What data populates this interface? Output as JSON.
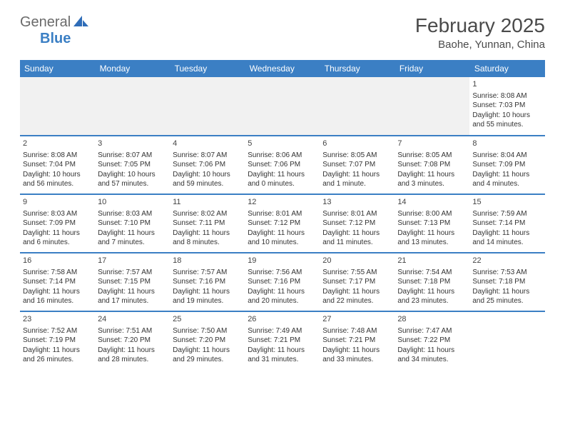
{
  "logo": {
    "text1": "General",
    "text2": "Blue"
  },
  "title": "February 2025",
  "location": "Baohe, Yunnan, China",
  "colors": {
    "header_bg": "#3b7fc4",
    "header_text": "#ffffff",
    "border": "#3b7fc4",
    "body_text": "#333333",
    "muted_bg": "#f1f1f1"
  },
  "day_headers": [
    "Sunday",
    "Monday",
    "Tuesday",
    "Wednesday",
    "Thursday",
    "Friday",
    "Saturday"
  ],
  "weeks": [
    [
      null,
      null,
      null,
      null,
      null,
      null,
      {
        "n": "1",
        "sr": "Sunrise: 8:08 AM",
        "ss": "Sunset: 7:03 PM",
        "dl": "Daylight: 10 hours and 55 minutes."
      }
    ],
    [
      {
        "n": "2",
        "sr": "Sunrise: 8:08 AM",
        "ss": "Sunset: 7:04 PM",
        "dl": "Daylight: 10 hours and 56 minutes."
      },
      {
        "n": "3",
        "sr": "Sunrise: 8:07 AM",
        "ss": "Sunset: 7:05 PM",
        "dl": "Daylight: 10 hours and 57 minutes."
      },
      {
        "n": "4",
        "sr": "Sunrise: 8:07 AM",
        "ss": "Sunset: 7:06 PM",
        "dl": "Daylight: 10 hours and 59 minutes."
      },
      {
        "n": "5",
        "sr": "Sunrise: 8:06 AM",
        "ss": "Sunset: 7:06 PM",
        "dl": "Daylight: 11 hours and 0 minutes."
      },
      {
        "n": "6",
        "sr": "Sunrise: 8:05 AM",
        "ss": "Sunset: 7:07 PM",
        "dl": "Daylight: 11 hours and 1 minute."
      },
      {
        "n": "7",
        "sr": "Sunrise: 8:05 AM",
        "ss": "Sunset: 7:08 PM",
        "dl": "Daylight: 11 hours and 3 minutes."
      },
      {
        "n": "8",
        "sr": "Sunrise: 8:04 AM",
        "ss": "Sunset: 7:09 PM",
        "dl": "Daylight: 11 hours and 4 minutes."
      }
    ],
    [
      {
        "n": "9",
        "sr": "Sunrise: 8:03 AM",
        "ss": "Sunset: 7:09 PM",
        "dl": "Daylight: 11 hours and 6 minutes."
      },
      {
        "n": "10",
        "sr": "Sunrise: 8:03 AM",
        "ss": "Sunset: 7:10 PM",
        "dl": "Daylight: 11 hours and 7 minutes."
      },
      {
        "n": "11",
        "sr": "Sunrise: 8:02 AM",
        "ss": "Sunset: 7:11 PM",
        "dl": "Daylight: 11 hours and 8 minutes."
      },
      {
        "n": "12",
        "sr": "Sunrise: 8:01 AM",
        "ss": "Sunset: 7:12 PM",
        "dl": "Daylight: 11 hours and 10 minutes."
      },
      {
        "n": "13",
        "sr": "Sunrise: 8:01 AM",
        "ss": "Sunset: 7:12 PM",
        "dl": "Daylight: 11 hours and 11 minutes."
      },
      {
        "n": "14",
        "sr": "Sunrise: 8:00 AM",
        "ss": "Sunset: 7:13 PM",
        "dl": "Daylight: 11 hours and 13 minutes."
      },
      {
        "n": "15",
        "sr": "Sunrise: 7:59 AM",
        "ss": "Sunset: 7:14 PM",
        "dl": "Daylight: 11 hours and 14 minutes."
      }
    ],
    [
      {
        "n": "16",
        "sr": "Sunrise: 7:58 AM",
        "ss": "Sunset: 7:14 PM",
        "dl": "Daylight: 11 hours and 16 minutes."
      },
      {
        "n": "17",
        "sr": "Sunrise: 7:57 AM",
        "ss": "Sunset: 7:15 PM",
        "dl": "Daylight: 11 hours and 17 minutes."
      },
      {
        "n": "18",
        "sr": "Sunrise: 7:57 AM",
        "ss": "Sunset: 7:16 PM",
        "dl": "Daylight: 11 hours and 19 minutes."
      },
      {
        "n": "19",
        "sr": "Sunrise: 7:56 AM",
        "ss": "Sunset: 7:16 PM",
        "dl": "Daylight: 11 hours and 20 minutes."
      },
      {
        "n": "20",
        "sr": "Sunrise: 7:55 AM",
        "ss": "Sunset: 7:17 PM",
        "dl": "Daylight: 11 hours and 22 minutes."
      },
      {
        "n": "21",
        "sr": "Sunrise: 7:54 AM",
        "ss": "Sunset: 7:18 PM",
        "dl": "Daylight: 11 hours and 23 minutes."
      },
      {
        "n": "22",
        "sr": "Sunrise: 7:53 AM",
        "ss": "Sunset: 7:18 PM",
        "dl": "Daylight: 11 hours and 25 minutes."
      }
    ],
    [
      {
        "n": "23",
        "sr": "Sunrise: 7:52 AM",
        "ss": "Sunset: 7:19 PM",
        "dl": "Daylight: 11 hours and 26 minutes."
      },
      {
        "n": "24",
        "sr": "Sunrise: 7:51 AM",
        "ss": "Sunset: 7:20 PM",
        "dl": "Daylight: 11 hours and 28 minutes."
      },
      {
        "n": "25",
        "sr": "Sunrise: 7:50 AM",
        "ss": "Sunset: 7:20 PM",
        "dl": "Daylight: 11 hours and 29 minutes."
      },
      {
        "n": "26",
        "sr": "Sunrise: 7:49 AM",
        "ss": "Sunset: 7:21 PM",
        "dl": "Daylight: 11 hours and 31 minutes."
      },
      {
        "n": "27",
        "sr": "Sunrise: 7:48 AM",
        "ss": "Sunset: 7:21 PM",
        "dl": "Daylight: 11 hours and 33 minutes."
      },
      {
        "n": "28",
        "sr": "Sunrise: 7:47 AM",
        "ss": "Sunset: 7:22 PM",
        "dl": "Daylight: 11 hours and 34 minutes."
      },
      null
    ]
  ]
}
